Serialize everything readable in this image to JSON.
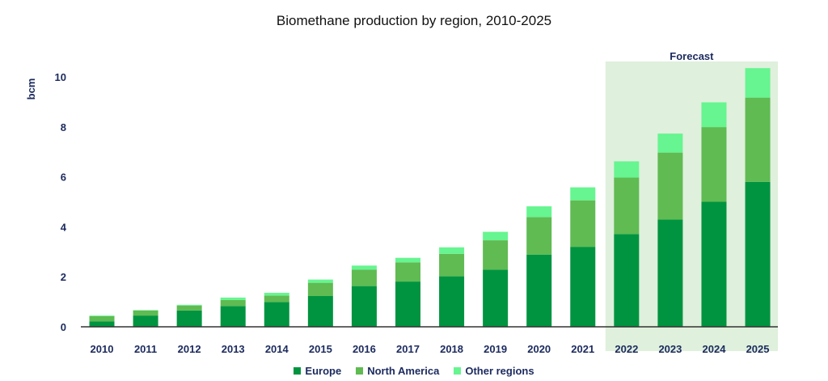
{
  "chart_data": {
    "type": "bar",
    "stacked": true,
    "title": "Biomethane production by region, 2010-2025",
    "xlabel": "",
    "ylabel": "bcm",
    "ylim": [
      0,
      10.4
    ],
    "yticks": [
      0,
      2,
      4,
      6,
      8,
      10
    ],
    "grid": false,
    "legend_position": "bottom",
    "annotation": "Forecast",
    "forecast_range": [
      "2022",
      "2025"
    ],
    "forecast_shade_color": "#dff0dc",
    "categories": [
      "2010",
      "2011",
      "2012",
      "2013",
      "2014",
      "2015",
      "2016",
      "2017",
      "2018",
      "2019",
      "2020",
      "2021",
      "2022",
      "2023",
      "2024",
      "2025"
    ],
    "series": [
      {
        "name": "Europe",
        "color": "#009440",
        "values": [
          0.22,
          0.45,
          0.65,
          0.83,
          0.99,
          1.23,
          1.63,
          1.81,
          2.02,
          2.29,
          2.89,
          3.2,
          3.71,
          4.29,
          5.0,
          5.8
        ]
      },
      {
        "name": "North America",
        "color": "#5fbb52",
        "values": [
          0.2,
          0.2,
          0.2,
          0.24,
          0.26,
          0.53,
          0.66,
          0.77,
          0.9,
          1.17,
          1.5,
          1.86,
          2.26,
          2.68,
          2.99,
          3.37
        ]
      },
      {
        "name": "Other regions",
        "color": "#66f590",
        "values": [
          0.03,
          0.02,
          0.03,
          0.1,
          0.11,
          0.13,
          0.16,
          0.18,
          0.26,
          0.34,
          0.43,
          0.52,
          0.65,
          0.76,
          0.99,
          1.18
        ]
      }
    ]
  }
}
